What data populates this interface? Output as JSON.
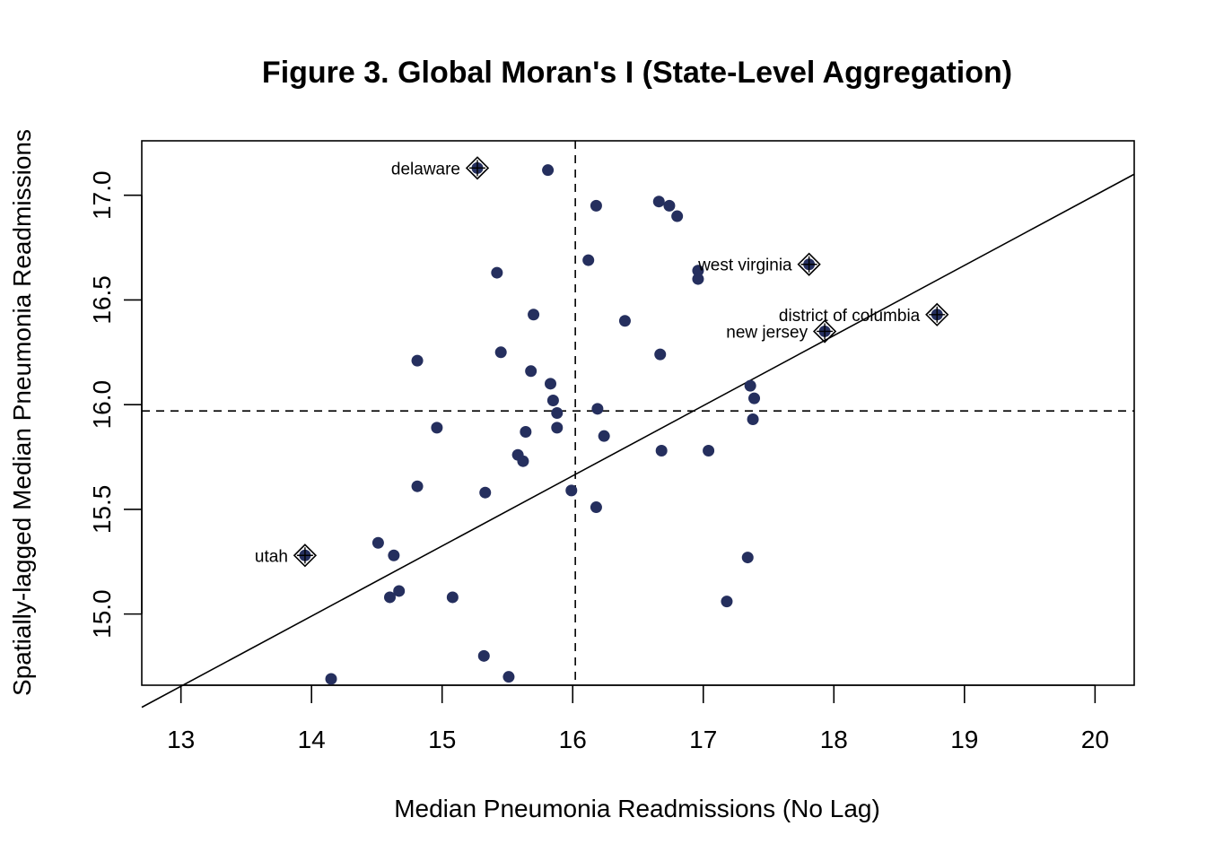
{
  "chart_data": {
    "type": "scatter",
    "title": "Figure 3. Global Moran's I (State-Level Aggregation)",
    "xlabel": "Median Pneumonia Readmissions (No Lag)",
    "ylabel": "Spatially-lagged Median Pneumonia Readmissions",
    "xlim": [
      12.7,
      20.3
    ],
    "ylim": [
      14.66,
      17.26
    ],
    "x_ticks": [
      13,
      14,
      15,
      16,
      17,
      18,
      19,
      20
    ],
    "y_ticks": [
      15.0,
      15.5,
      16.0,
      16.5,
      17.0
    ],
    "x_tick_labels": [
      "13",
      "14",
      "15",
      "16",
      "17",
      "18",
      "19",
      "20"
    ],
    "y_tick_labels": [
      "15.0",
      "15.5",
      "16.0",
      "16.5",
      "17.0"
    ],
    "mean_x": 16.02,
    "mean_y": 15.97,
    "regression": {
      "intercept": 10.3,
      "slope": 0.335
    },
    "point_color": "#252f5e",
    "points": [
      {
        "x": 15.81,
        "y": 17.12
      },
      {
        "x": 16.18,
        "y": 16.95
      },
      {
        "x": 16.66,
        "y": 16.97
      },
      {
        "x": 16.74,
        "y": 16.95
      },
      {
        "x": 16.8,
        "y": 16.9
      },
      {
        "x": 16.12,
        "y": 16.69
      },
      {
        "x": 15.42,
        "y": 16.63
      },
      {
        "x": 16.96,
        "y": 16.64
      },
      {
        "x": 16.96,
        "y": 16.6
      },
      {
        "x": 15.7,
        "y": 16.43
      },
      {
        "x": 16.4,
        "y": 16.4
      },
      {
        "x": 15.45,
        "y": 16.25
      },
      {
        "x": 16.67,
        "y": 16.24
      },
      {
        "x": 14.81,
        "y": 16.21
      },
      {
        "x": 15.68,
        "y": 16.16
      },
      {
        "x": 15.83,
        "y": 16.1
      },
      {
        "x": 17.36,
        "y": 16.09
      },
      {
        "x": 15.85,
        "y": 16.02
      },
      {
        "x": 17.39,
        "y": 16.03
      },
      {
        "x": 16.19,
        "y": 15.98
      },
      {
        "x": 15.88,
        "y": 15.96
      },
      {
        "x": 17.38,
        "y": 15.93
      },
      {
        "x": 14.96,
        "y": 15.89
      },
      {
        "x": 15.88,
        "y": 15.89
      },
      {
        "x": 15.64,
        "y": 15.87
      },
      {
        "x": 16.24,
        "y": 15.85
      },
      {
        "x": 16.68,
        "y": 15.78
      },
      {
        "x": 17.04,
        "y": 15.78
      },
      {
        "x": 15.58,
        "y": 15.76
      },
      {
        "x": 15.62,
        "y": 15.73
      },
      {
        "x": 14.81,
        "y": 15.61
      },
      {
        "x": 15.99,
        "y": 15.59
      },
      {
        "x": 15.33,
        "y": 15.58
      },
      {
        "x": 16.18,
        "y": 15.51
      },
      {
        "x": 14.51,
        "y": 15.34
      },
      {
        "x": 14.63,
        "y": 15.28
      },
      {
        "x": 17.34,
        "y": 15.27
      },
      {
        "x": 14.67,
        "y": 15.11
      },
      {
        "x": 14.6,
        "y": 15.08
      },
      {
        "x": 15.08,
        "y": 15.08
      },
      {
        "x": 17.18,
        "y": 15.06
      },
      {
        "x": 15.32,
        "y": 14.8
      },
      {
        "x": 15.51,
        "y": 14.7
      },
      {
        "x": 14.15,
        "y": 14.69
      }
    ],
    "influential_points": [
      {
        "label": "delaware",
        "x": 15.27,
        "y": 17.13
      },
      {
        "label": "west virginia",
        "x": 17.81,
        "y": 16.67
      },
      {
        "label": "district of columbia",
        "x": 18.79,
        "y": 16.43
      },
      {
        "label": "new jersey",
        "x": 17.93,
        "y": 16.35
      },
      {
        "label": "utah",
        "x": 13.95,
        "y": 15.28
      }
    ]
  }
}
